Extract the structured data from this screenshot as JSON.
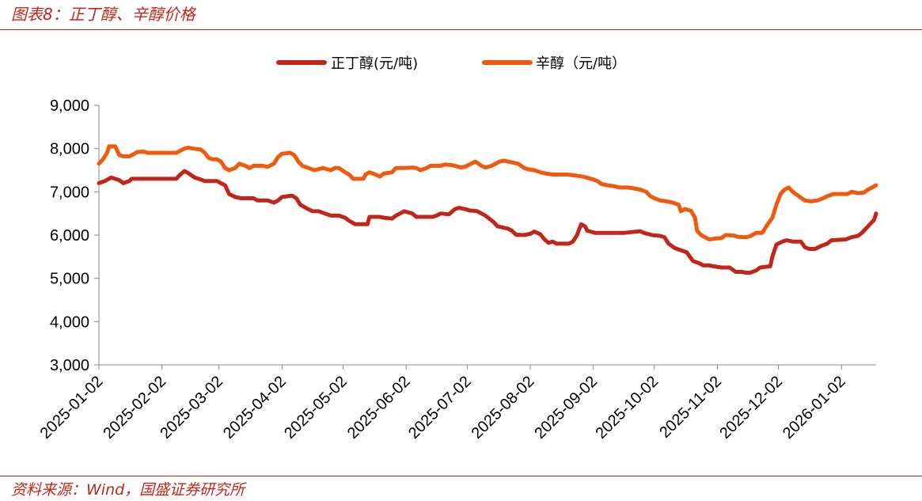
{
  "header": {
    "title": "图表8：正丁醇、辛醇价格"
  },
  "footer": {
    "source": "资料来源：Wind，国盛证券研究所"
  },
  "colors": {
    "accent": "#c0261a",
    "series_butanol": "#c0261a",
    "series_octanol": "#f05a0f"
  },
  "chart_data": {
    "type": "line",
    "title": "正丁醇、辛醇价格",
    "xlabel": "",
    "ylabel": "",
    "ylim": [
      3000,
      9000
    ],
    "yticks": [
      "3,000",
      "4,000",
      "5,000",
      "6,000",
      "7,000",
      "8,000",
      "9,000"
    ],
    "ytick_values": [
      3000,
      4000,
      5000,
      6000,
      7000,
      8000,
      9000
    ],
    "xticks": [
      "2025-01-02",
      "2025-02-02",
      "2025-03-02",
      "2025-04-02",
      "2025-05-02",
      "2025-06-02",
      "2025-07-02",
      "2025-08-02",
      "2025-09-02",
      "2025-10-02",
      "2025-11-02",
      "2025-12-02",
      "2026-01-02"
    ],
    "x_range_days": [
      0,
      382
    ],
    "legend_position": "top-center",
    "series": [
      {
        "name": "正丁醇(元/吨)",
        "color": "#c0261a",
        "points": [
          [
            0,
            7200
          ],
          [
            3,
            7250
          ],
          [
            6,
            7330
          ],
          [
            10,
            7270
          ],
          [
            12,
            7200
          ],
          [
            15,
            7250
          ],
          [
            16,
            7300
          ],
          [
            22,
            7300
          ],
          [
            30,
            7300
          ],
          [
            38,
            7300
          ],
          [
            40,
            7400
          ],
          [
            42,
            7480
          ],
          [
            44,
            7430
          ],
          [
            47,
            7330
          ],
          [
            49,
            7300
          ],
          [
            52,
            7250
          ],
          [
            56,
            7250
          ],
          [
            58,
            7250
          ],
          [
            60,
            7200
          ],
          [
            62,
            7150
          ],
          [
            63,
            7050
          ],
          [
            64,
            6950
          ],
          [
            67,
            6880
          ],
          [
            70,
            6850
          ],
          [
            76,
            6850
          ],
          [
            78,
            6800
          ],
          [
            83,
            6800
          ],
          [
            86,
            6750
          ],
          [
            88,
            6800
          ],
          [
            90,
            6880
          ],
          [
            93,
            6900
          ],
          [
            95,
            6910
          ],
          [
            97,
            6850
          ],
          [
            99,
            6700
          ],
          [
            102,
            6620
          ],
          [
            105,
            6550
          ],
          [
            108,
            6550
          ],
          [
            111,
            6500
          ],
          [
            114,
            6450
          ],
          [
            118,
            6450
          ],
          [
            121,
            6400
          ],
          [
            123,
            6330
          ],
          [
            126,
            6250
          ],
          [
            130,
            6250
          ],
          [
            132,
            6250
          ],
          [
            133,
            6420
          ],
          [
            138,
            6420
          ],
          [
            140,
            6400
          ],
          [
            144,
            6380
          ],
          [
            146,
            6450
          ],
          [
            148,
            6500
          ],
          [
            150,
            6550
          ],
          [
            154,
            6500
          ],
          [
            156,
            6420
          ],
          [
            164,
            6420
          ],
          [
            166,
            6450
          ],
          [
            168,
            6500
          ],
          [
            172,
            6480
          ],
          [
            175,
            6600
          ],
          [
            177,
            6630
          ],
          [
            180,
            6600
          ],
          [
            182,
            6570
          ],
          [
            186,
            6550
          ],
          [
            190,
            6450
          ],
          [
            194,
            6300
          ],
          [
            196,
            6200
          ],
          [
            201,
            6150
          ],
          [
            203,
            6100
          ],
          [
            205,
            6010
          ],
          [
            209,
            6000
          ],
          [
            212,
            6030
          ],
          [
            214,
            6080
          ],
          [
            217,
            6020
          ],
          [
            219,
            5900
          ],
          [
            221,
            5820
          ],
          [
            223,
            5850
          ],
          [
            225,
            5800
          ],
          [
            231,
            5800
          ],
          [
            233,
            5850
          ],
          [
            235,
            6000
          ],
          [
            237,
            6250
          ],
          [
            239,
            6200
          ],
          [
            240,
            6100
          ],
          [
            244,
            6050
          ],
          [
            254,
            6050
          ],
          [
            258,
            6050
          ],
          [
            262,
            6070
          ],
          [
            266,
            6090
          ],
          [
            268,
            6050
          ],
          [
            272,
            6000
          ],
          [
            276,
            5980
          ],
          [
            278,
            5950
          ],
          [
            280,
            5800
          ],
          [
            283,
            5700
          ],
          [
            286,
            5650
          ],
          [
            289,
            5600
          ],
          [
            292,
            5400
          ],
          [
            295,
            5350
          ],
          [
            297,
            5300
          ],
          [
            300,
            5300
          ],
          [
            302,
            5280
          ],
          [
            306,
            5250
          ],
          [
            310,
            5250
          ],
          [
            313,
            5150
          ],
          [
            316,
            5150
          ],
          [
            318,
            5130
          ],
          [
            320,
            5130
          ],
          [
            323,
            5180
          ],
          [
            325,
            5250
          ],
          [
            330,
            5280
          ],
          [
            331,
            5500
          ],
          [
            333,
            5780
          ],
          [
            336,
            5850
          ],
          [
            338,
            5880
          ],
          [
            341,
            5850
          ],
          [
            345,
            5850
          ],
          [
            347,
            5720
          ],
          [
            349,
            5680
          ],
          [
            352,
            5680
          ],
          [
            355,
            5750
          ],
          [
            358,
            5800
          ],
          [
            360,
            5880
          ],
          [
            367,
            5900
          ],
          [
            370,
            5950
          ],
          [
            373,
            5980
          ],
          [
            375,
            6050
          ],
          [
            377,
            6150
          ],
          [
            379,
            6250
          ],
          [
            381,
            6350
          ],
          [
            382,
            6500
          ]
        ]
      },
      {
        "name": "辛醇（元/吨）",
        "color": "#f05a0f",
        "points": [
          [
            0,
            7650
          ],
          [
            2,
            7750
          ],
          [
            4,
            7900
          ],
          [
            5,
            8050
          ],
          [
            8,
            8050
          ],
          [
            10,
            7850
          ],
          [
            12,
            7820
          ],
          [
            15,
            7820
          ],
          [
            17,
            7870
          ],
          [
            19,
            7920
          ],
          [
            22,
            7930
          ],
          [
            24,
            7900
          ],
          [
            30,
            7900
          ],
          [
            38,
            7900
          ],
          [
            40,
            7950
          ],
          [
            42,
            8000
          ],
          [
            44,
            8020
          ],
          [
            46,
            8000
          ],
          [
            50,
            7980
          ],
          [
            52,
            7900
          ],
          [
            54,
            7780
          ],
          [
            56,
            7750
          ],
          [
            58,
            7750
          ],
          [
            60,
            7700
          ],
          [
            62,
            7550
          ],
          [
            64,
            7500
          ],
          [
            67,
            7550
          ],
          [
            69,
            7650
          ],
          [
            72,
            7600
          ],
          [
            74,
            7550
          ],
          [
            76,
            7600
          ],
          [
            80,
            7600
          ],
          [
            83,
            7580
          ],
          [
            86,
            7650
          ],
          [
            88,
            7800
          ],
          [
            90,
            7880
          ],
          [
            94,
            7900
          ],
          [
            96,
            7850
          ],
          [
            98,
            7700
          ],
          [
            100,
            7600
          ],
          [
            103,
            7550
          ],
          [
            106,
            7500
          ],
          [
            110,
            7550
          ],
          [
            114,
            7500
          ],
          [
            116,
            7550
          ],
          [
            118,
            7550
          ],
          [
            121,
            7450
          ],
          [
            123,
            7400
          ],
          [
            125,
            7300
          ],
          [
            130,
            7300
          ],
          [
            131,
            7400
          ],
          [
            133,
            7450
          ],
          [
            136,
            7400
          ],
          [
            138,
            7350
          ],
          [
            140,
            7420
          ],
          [
            144,
            7450
          ],
          [
            146,
            7550
          ],
          [
            150,
            7550
          ],
          [
            154,
            7560
          ],
          [
            156,
            7550
          ],
          [
            158,
            7500
          ],
          [
            161,
            7550
          ],
          [
            163,
            7600
          ],
          [
            168,
            7600
          ],
          [
            170,
            7630
          ],
          [
            173,
            7620
          ],
          [
            175,
            7600
          ],
          [
            178,
            7560
          ],
          [
            180,
            7580
          ],
          [
            183,
            7650
          ],
          [
            185,
            7700
          ],
          [
            188,
            7600
          ],
          [
            190,
            7560
          ],
          [
            193,
            7600
          ],
          [
            195,
            7650
          ],
          [
            197,
            7700
          ],
          [
            199,
            7720
          ],
          [
            201,
            7700
          ],
          [
            203,
            7680
          ],
          [
            206,
            7650
          ],
          [
            209,
            7550
          ],
          [
            211,
            7520
          ],
          [
            214,
            7500
          ],
          [
            217,
            7450
          ],
          [
            220,
            7420
          ],
          [
            223,
            7400
          ],
          [
            230,
            7400
          ],
          [
            234,
            7380
          ],
          [
            238,
            7350
          ],
          [
            242,
            7300
          ],
          [
            245,
            7250
          ],
          [
            247,
            7180
          ],
          [
            250,
            7150
          ],
          [
            253,
            7130
          ],
          [
            256,
            7100
          ],
          [
            260,
            7100
          ],
          [
            263,
            7080
          ],
          [
            266,
            7050
          ],
          [
            269,
            7000
          ],
          [
            271,
            6900
          ],
          [
            273,
            6850
          ],
          [
            276,
            6800
          ],
          [
            279,
            6780
          ],
          [
            282,
            6750
          ],
          [
            285,
            6700
          ],
          [
            286,
            6550
          ],
          [
            288,
            6600
          ],
          [
            291,
            6560
          ],
          [
            293,
            6400
          ],
          [
            294,
            6100
          ],
          [
            296,
            6000
          ],
          [
            300,
            5900
          ],
          [
            303,
            5920
          ],
          [
            306,
            5930
          ],
          [
            308,
            6000
          ],
          [
            312,
            5990
          ],
          [
            314,
            5960
          ],
          [
            318,
            5950
          ],
          [
            320,
            5970
          ],
          [
            323,
            6050
          ],
          [
            326,
            6050
          ],
          [
            328,
            6200
          ],
          [
            331,
            6400
          ],
          [
            333,
            6700
          ],
          [
            335,
            6950
          ],
          [
            337,
            7050
          ],
          [
            339,
            7100
          ],
          [
            341,
            7000
          ],
          [
            344,
            6900
          ],
          [
            347,
            6800
          ],
          [
            350,
            6780
          ],
          [
            353,
            6800
          ],
          [
            356,
            6850
          ],
          [
            358,
            6900
          ],
          [
            361,
            6950
          ],
          [
            365,
            6950
          ],
          [
            368,
            6950
          ],
          [
            370,
            7000
          ],
          [
            373,
            6970
          ],
          [
            376,
            6980
          ],
          [
            378,
            7050
          ],
          [
            380,
            7100
          ],
          [
            382,
            7150
          ]
        ]
      }
    ]
  }
}
